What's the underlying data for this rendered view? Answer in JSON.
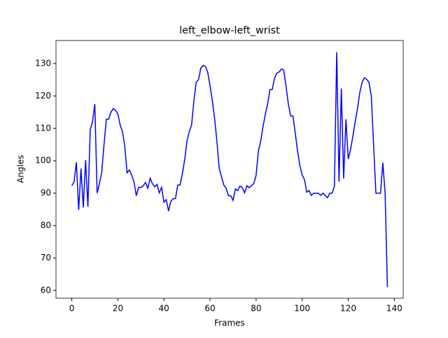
{
  "chart_data": {
    "type": "line",
    "title": "left_elbow-left_wrist",
    "x_label": "Frames",
    "y_label": "Angles",
    "x": [
      0,
      1,
      2,
      3,
      4,
      5,
      6,
      7,
      8,
      9,
      10,
      11,
      12,
      13,
      14,
      15,
      16,
      17,
      18,
      19,
      20,
      21,
      22,
      23,
      24,
      25,
      26,
      27,
      28,
      29,
      30,
      31,
      32,
      33,
      34,
      35,
      36,
      37,
      38,
      39,
      40,
      41,
      42,
      43,
      44,
      45,
      46,
      47,
      48,
      49,
      50,
      51,
      52,
      53,
      54,
      55,
      56,
      57,
      58,
      59,
      60,
      61,
      62,
      63,
      64,
      65,
      66,
      67,
      68,
      69,
      70,
      71,
      72,
      73,
      74,
      75,
      76,
      77,
      78,
      79,
      80,
      81,
      82,
      83,
      84,
      85,
      86,
      87,
      88,
      89,
      90,
      91,
      92,
      93,
      94,
      95,
      96,
      97,
      98,
      99,
      100,
      101,
      102,
      103,
      104,
      105,
      106,
      107,
      108,
      109,
      110,
      111,
      112,
      113,
      114,
      115,
      116,
      117,
      118,
      119,
      120,
      121,
      122,
      123,
      124,
      125,
      126,
      127,
      128,
      129,
      130,
      131,
      132,
      133,
      134,
      135,
      136,
      137
    ],
    "series": [
      {
        "color": "#0000ff",
        "values": [
          92.3,
          93.5,
          99.5,
          84.8,
          97.6,
          85.6,
          100.2,
          85.8,
          109.6,
          112,
          117.5,
          90,
          93,
          96.5,
          105,
          112.8,
          112.8,
          115,
          116.1,
          115.5,
          114.5,
          111,
          109,
          104.5,
          96.3,
          97.2,
          95.5,
          93.5,
          89.2,
          91.8,
          91.7,
          92.3,
          93.3,
          91.5,
          94.6,
          92.9,
          92,
          92.7,
          90.1,
          91.8,
          87.2,
          88,
          84.5,
          87.5,
          88.3,
          88.3,
          92.5,
          92.5,
          96,
          100.3,
          106,
          109,
          111,
          118.5,
          124.2,
          125,
          128.6,
          129.4,
          129.1,
          127.3,
          123.2,
          118.6,
          113,
          106,
          97.6,
          95,
          92.5,
          91.5,
          89.2,
          89.2,
          87.8,
          91.3,
          90.8,
          92.2,
          91.7,
          90.1,
          92.3,
          91.7,
          92.3,
          93,
          95.5,
          103,
          106,
          110.5,
          114.3,
          117.5,
          121.9,
          122,
          125.5,
          127,
          127.4,
          128.3,
          128,
          123,
          117.5,
          113.8,
          113.8,
          108.5,
          103,
          98.5,
          95.6,
          94.2,
          90.3,
          90.8,
          89.3,
          90,
          90,
          90,
          89.3,
          90,
          89.3,
          88.6,
          90,
          90,
          92.2,
          133.5,
          93.5,
          122.3,
          94.5,
          112.8,
          100.5,
          103.5,
          107.5,
          112,
          116,
          121,
          124.2,
          125.6,
          125.1,
          124.2,
          120,
          105,
          90,
          90,
          90,
          99.4,
          90,
          61
        ]
      }
    ],
    "xlim": [
      -6.85,
      143.85
    ],
    "ylim": [
      57.6,
      137.1
    ],
    "xticks": [
      0,
      20,
      40,
      60,
      80,
      100,
      120,
      140
    ],
    "yticks": [
      60,
      70,
      80,
      90,
      100,
      110,
      120,
      130
    ]
  }
}
